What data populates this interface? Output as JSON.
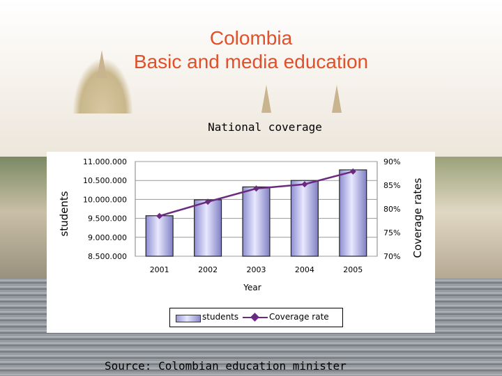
{
  "slide": {
    "title_line1": "Colombia",
    "title_line2": "Basic and media education",
    "chart_title": "National coverage",
    "source": "Source: Colombian education minister"
  },
  "colors": {
    "title": "#e0502a",
    "bar_fill": "#b8b8ee",
    "line": "#6a2a80"
  },
  "chart_data": {
    "type": "bar",
    "title": "National coverage",
    "xlabel": "Year",
    "ylabel": "students",
    "y2label": "Coverage rates",
    "categories": [
      "2001",
      "2002",
      "2003",
      "2004",
      "2005"
    ],
    "ylim": [
      8500000,
      11000000
    ],
    "y_ticks": [
      "8.500.000",
      "9.000.000",
      "9.500.000",
      "10.000.000",
      "10.500.000",
      "11.000.000"
    ],
    "y_tick_values": [
      8500000,
      9000000,
      9500000,
      10000000,
      10500000,
      11000000
    ],
    "y2lim": [
      70,
      90
    ],
    "y2_ticks": [
      "70%",
      "75%",
      "80%",
      "85%",
      "90%"
    ],
    "y2_tick_values": [
      70,
      75,
      80,
      85,
      90
    ],
    "grid": true,
    "legend_position": "bottom",
    "series": [
      {
        "name": "students",
        "type": "bar",
        "axis": "left",
        "values": [
          9570000,
          9990000,
          10330000,
          10500000,
          10780000
        ]
      },
      {
        "name": "Coverage rate",
        "type": "line",
        "axis": "right",
        "values": [
          78.5,
          81.5,
          84.3,
          85.2,
          87.9
        ]
      }
    ]
  }
}
